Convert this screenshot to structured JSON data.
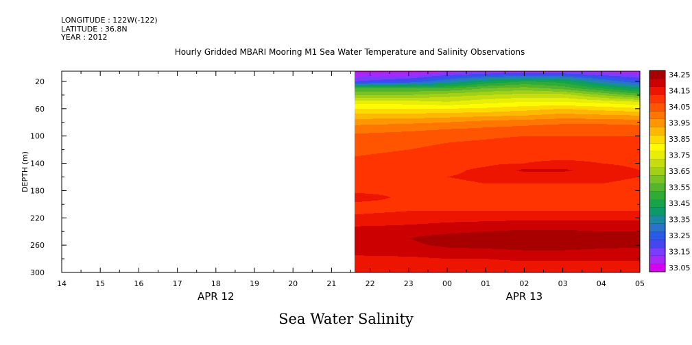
{
  "header": {
    "longitude": "LONGITUDE : 122W(-122)",
    "latitude": "LATITUDE : 36.8N",
    "year": "YEAR : 2012"
  },
  "title": "Hourly Gridded MBARI Mooring M1 Sea Water Temperature and Salinity Observations",
  "footer_title": "Sea Water Salinity",
  "chart_data": {
    "type": "heatmap",
    "title": "Hourly Gridded MBARI Mooring M1 Sea Water Temperature and Salinity Observations",
    "ylabel": "DEPTH (m)",
    "xlabel": "",
    "x_ticks": [
      "14",
      "15",
      "16",
      "17",
      "18",
      "19",
      "20",
      "21",
      "22",
      "23",
      "00",
      "01",
      "02",
      "03",
      "04",
      "05"
    ],
    "x_date_labels": [
      {
        "label": "APR 12",
        "hour": 18
      },
      {
        "label": "APR 13",
        "hour": 26
      }
    ],
    "xlim_hours_from_apr12_00": [
      14,
      29
    ],
    "data_start_hour": 21.6,
    "ylim": [
      300,
      5
    ],
    "y_ticks": [
      20,
      60,
      100,
      140,
      180,
      220,
      260,
      300
    ],
    "depths": [
      5,
      20,
      30,
      40,
      50,
      60,
      70,
      80,
      90,
      100,
      110,
      120,
      130,
      140,
      150,
      160,
      170,
      180,
      190,
      200,
      210,
      220,
      230,
      240,
      250,
      260,
      270,
      280,
      290,
      300
    ],
    "times": [
      21.6,
      23,
      24,
      25,
      26,
      27,
      28,
      29
    ],
    "values": [
      [
        33.08,
        33.07,
        33.1,
        33.12,
        33.13,
        33.12,
        33.1,
        33.1
      ],
      [
        33.2,
        33.25,
        33.35,
        33.45,
        33.5,
        33.48,
        33.35,
        33.25
      ],
      [
        33.55,
        33.55,
        33.55,
        33.6,
        33.62,
        33.58,
        33.5,
        33.42
      ],
      [
        33.65,
        33.65,
        33.68,
        33.7,
        33.72,
        33.72,
        33.65,
        33.58
      ],
      [
        33.78,
        33.77,
        33.75,
        33.78,
        33.8,
        33.8,
        33.78,
        33.75
      ],
      [
        33.85,
        33.85,
        33.85,
        33.86,
        33.88,
        33.9,
        33.88,
        33.86
      ],
      [
        33.92,
        33.92,
        33.93,
        33.94,
        33.95,
        33.97,
        33.96,
        33.95
      ],
      [
        33.98,
        33.99,
        34.0,
        34.02,
        34.03,
        34.04,
        34.04,
        34.03
      ],
      [
        34.03,
        34.04,
        34.05,
        34.06,
        34.07,
        34.08,
        34.08,
        34.08
      ],
      [
        34.06,
        34.07,
        34.08,
        34.09,
        34.1,
        34.1,
        34.1,
        34.1
      ],
      [
        34.08,
        34.09,
        34.1,
        34.11,
        34.12,
        34.12,
        34.12,
        34.12
      ],
      [
        34.09,
        34.1,
        34.11,
        34.12,
        34.13,
        34.13,
        34.13,
        34.13
      ],
      [
        34.1,
        34.11,
        34.12,
        34.13,
        34.14,
        34.14,
        34.14,
        34.13
      ],
      [
        34.11,
        34.12,
        34.13,
        34.14,
        34.15,
        34.16,
        34.15,
        34.14
      ],
      [
        34.12,
        34.13,
        34.14,
        34.16,
        34.21,
        34.21,
        34.17,
        34.15
      ],
      [
        34.13,
        34.14,
        34.15,
        34.16,
        34.17,
        34.17,
        34.16,
        34.15
      ],
      [
        34.13,
        34.14,
        34.14,
        34.15,
        34.15,
        34.15,
        34.15,
        34.14
      ],
      [
        34.14,
        34.14,
        34.14,
        34.14,
        34.14,
        34.14,
        34.14,
        34.14
      ],
      [
        34.17,
        34.14,
        34.14,
        34.14,
        34.14,
        34.14,
        34.14,
        34.14
      ],
      [
        34.14,
        34.14,
        34.14,
        34.14,
        34.14,
        34.14,
        34.14,
        34.14
      ],
      [
        34.14,
        34.15,
        34.15,
        34.15,
        34.15,
        34.15,
        34.15,
        34.15
      ],
      [
        34.16,
        34.17,
        34.18,
        34.18,
        34.19,
        34.19,
        34.19,
        34.19
      ],
      [
        34.19,
        34.2,
        34.21,
        34.22,
        34.22,
        34.22,
        34.22,
        34.22
      ],
      [
        34.23,
        34.23,
        34.24,
        34.25,
        34.26,
        34.26,
        34.25,
        34.25
      ],
      [
        34.24,
        34.25,
        34.27,
        34.28,
        34.3,
        34.3,
        34.28,
        34.27
      ],
      [
        34.23,
        34.24,
        34.26,
        34.27,
        34.28,
        34.28,
        34.27,
        34.26
      ],
      [
        34.21,
        34.22,
        34.23,
        34.23,
        34.24,
        34.24,
        34.23,
        34.23
      ],
      [
        34.19,
        34.19,
        34.2,
        34.2,
        34.21,
        34.21,
        34.21,
        34.21
      ],
      [
        34.17,
        34.17,
        34.17,
        34.18,
        34.18,
        34.18,
        34.18,
        34.18
      ],
      [
        34.15,
        34.15,
        34.15,
        34.16,
        34.16,
        34.16,
        34.16,
        34.16
      ]
    ],
    "colorbar": {
      "levels": [
        33.05,
        33.1,
        33.15,
        33.2,
        33.25,
        33.3,
        33.35,
        33.4,
        33.45,
        33.5,
        33.55,
        33.6,
        33.65,
        33.7,
        33.75,
        33.8,
        33.85,
        33.9,
        33.95,
        34.0,
        34.05,
        34.1,
        34.15,
        34.2,
        34.25,
        34.3
      ],
      "labels": [
        "33.05",
        "33.15",
        "33.25",
        "33.35",
        "33.45",
        "33.55",
        "33.65",
        "33.75",
        "33.85",
        "33.95",
        "34.05",
        "34.15",
        "34.25"
      ],
      "colors": [
        "#d800f0",
        "#a828f8",
        "#7a3cff",
        "#4646f0",
        "#2a5ae6",
        "#2b73c8",
        "#1b8aa0",
        "#0d9a6a",
        "#17a34b",
        "#30ab35",
        "#54b52c",
        "#7bc322",
        "#a2d017",
        "#c6de0f",
        "#e8ee05",
        "#fffb00",
        "#ffda00",
        "#ffb800",
        "#ff9700",
        "#ff7600",
        "#ff5500",
        "#ff3400",
        "#ee1500",
        "#cc0000",
        "#a80000"
      ]
    },
    "grid": false,
    "legend": "colorbar-right"
  }
}
